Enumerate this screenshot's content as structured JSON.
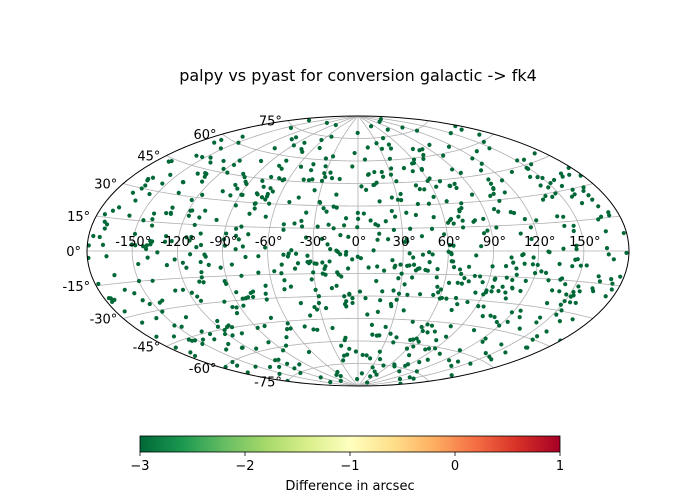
{
  "chart_data": {
    "type": "scatter",
    "projection": "aitoff",
    "title": "palpy vs pyast for conversion galactic -> fk4",
    "grid": true,
    "lon_ticks": [
      -150,
      -120,
      -90,
      -60,
      -30,
      0,
      30,
      60,
      90,
      120,
      150
    ],
    "lat_ticks": [
      -75,
      -60,
      -45,
      -30,
      -15,
      0,
      15,
      30,
      45,
      60,
      75
    ],
    "lon_tick_labels": [
      "-150°",
      "-120°",
      "-90°",
      "-60°",
      "-30°",
      "0°",
      "30°",
      "60°",
      "90°",
      "120°",
      "150°"
    ],
    "lat_tick_labels": [
      "-75°",
      "-60°",
      "-45°",
      "-30°",
      "-15°",
      "0°",
      "15°",
      "30°",
      "45°",
      "60°",
      "75°"
    ],
    "point_value_approx": -3,
    "point_color": "#006837",
    "point_count_approx": 800,
    "points_note": "Points are roughly uniformly distributed over the sphere; all share the same color (about -3 arcsec difference).",
    "colorbar": {
      "label": "Difference in arcsec",
      "vmin": -3,
      "vmax": 1,
      "ticks": [
        -3,
        -2,
        -1,
        0,
        1
      ],
      "tick_labels": [
        "−3",
        "−2",
        "−1",
        "0",
        "1"
      ],
      "cmap": "RdYlGn_r",
      "colors": [
        "#006837",
        "#1a9850",
        "#66bd63",
        "#a6d96a",
        "#d9ef8b",
        "#ffffbf",
        "#fee08b",
        "#fdae61",
        "#f46d43",
        "#d73027",
        "#a50026"
      ]
    }
  }
}
